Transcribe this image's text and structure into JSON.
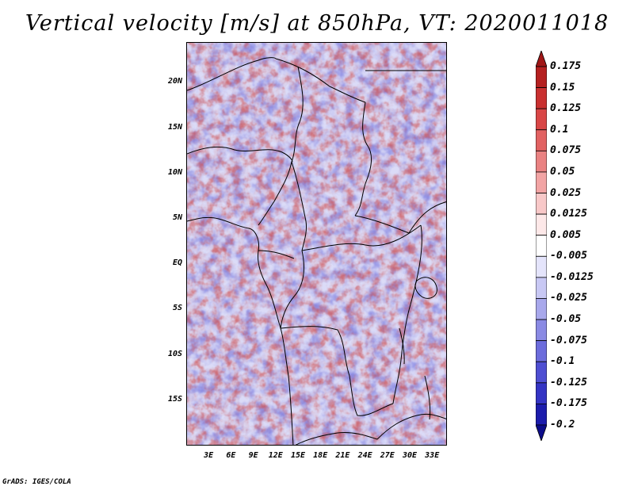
{
  "title": "Vertical velocity [m/s] at 850hPa, VT: 2020011018",
  "credit": "GrADS: IGES/COLA",
  "map": {
    "lat_range": [
      -20,
      24.5
    ],
    "lon_range": [
      0,
      35
    ],
    "lat_ticks": [
      "20N",
      "15N",
      "10N",
      "5N",
      "EQ",
      "5S",
      "10S",
      "15S"
    ],
    "lat_tick_values": [
      20,
      15,
      10,
      5,
      0,
      -5,
      -10,
      -15
    ],
    "lon_ticks": [
      "3E",
      "6E",
      "9E",
      "12E",
      "15E",
      "18E",
      "21E",
      "24E",
      "27E",
      "30E",
      "33E"
    ],
    "lon_tick_values": [
      3,
      6,
      9,
      12,
      15,
      18,
      21,
      24,
      27,
      30,
      33
    ],
    "variable": "vertical velocity",
    "units": "m/s",
    "level": "850hPa"
  },
  "colorbar": {
    "labels": [
      "0.175",
      "0.15",
      "0.125",
      "0.1",
      "0.075",
      "0.05",
      "0.025",
      "0.0125",
      "0.005",
      "-0.005",
      "-0.0125",
      "-0.025",
      "-0.05",
      "-0.075",
      "-0.1",
      "-0.125",
      "-0.175",
      "-0.2"
    ],
    "colors": [
      "#a01616",
      "#b52020",
      "#c93030",
      "#d94646",
      "#e26262",
      "#ea8282",
      "#f2a4a4",
      "#f8c8c8",
      "#fde8e8",
      "#ffffff",
      "#e4e4fb",
      "#c8c8f4",
      "#a8a8ec",
      "#8a8ae4",
      "#6c6cdc",
      "#4e4ed2",
      "#3434c4",
      "#1c1cac",
      "#0c0c8a"
    ],
    "positive_color": "#d94646",
    "negative_color": "#6c6cdc"
  }
}
